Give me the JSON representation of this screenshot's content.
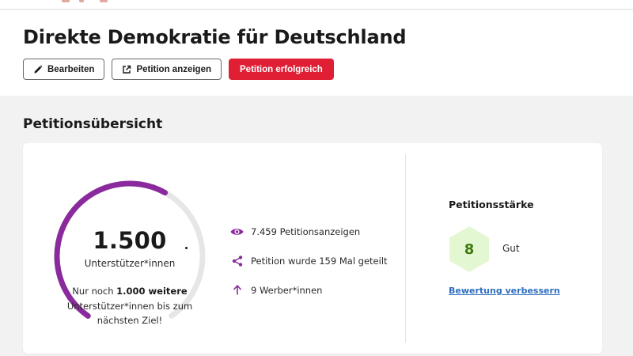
{
  "header": {
    "title": "Direkte Demokratie für Deutschland",
    "actions": {
      "edit_label": "Bearbeiten",
      "view_label": "Petition anzeigen",
      "success_label": "Petition erfolgreich"
    }
  },
  "overview": {
    "title": "Petitionsübersicht",
    "supporters": {
      "count": "1.500",
      "unit": "Unterstützer*innen",
      "goal_prefix": "Nur noch ",
      "goal_highlight": "1.000 weitere",
      "goal_suffix": " Unterstützer*innen bis zum nächsten Ziel!",
      "progress": 0.6
    },
    "stats": [
      {
        "icon": "eye-icon",
        "text": "7.459 Petitionsanzeigen"
      },
      {
        "icon": "share-icon",
        "text": "Petition wurde 159 Mal geteilt"
      },
      {
        "icon": "arrow-up-icon",
        "text": "9 Werber*innen"
      }
    ],
    "strength": {
      "title": "Petitionsstärke",
      "score": "8",
      "grade": "Gut",
      "improve_link": "Bewertung verbessern"
    }
  },
  "colors": {
    "primary_red": "#e01f35",
    "gauge_purple": "#8a2a9c",
    "gauge_track": "#e6e6e6",
    "hex_fill": "#e3f7d2",
    "hex_text": "#3f7a10",
    "link_blue": "#2f6fbf",
    "stat_icon_purple": "#8a2a9c"
  }
}
